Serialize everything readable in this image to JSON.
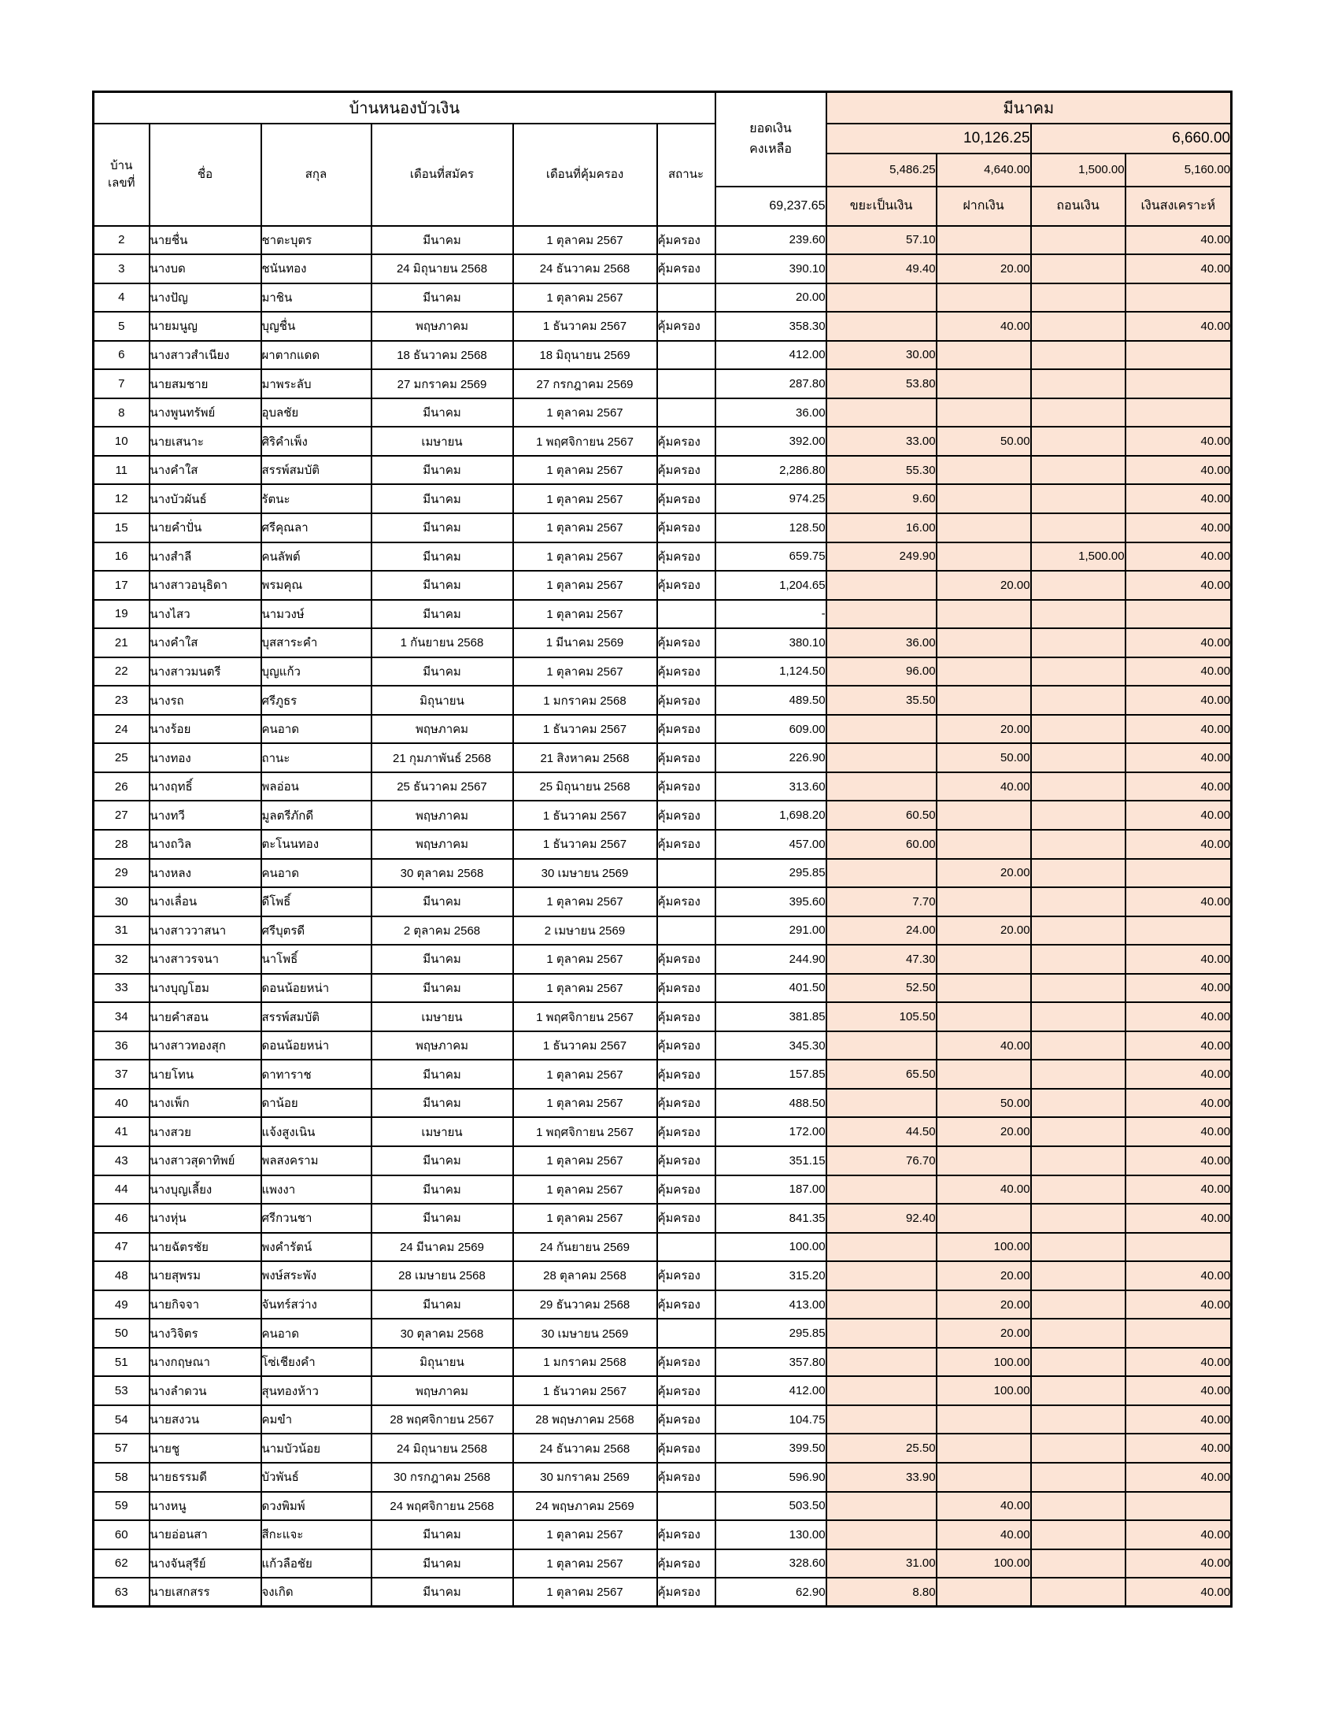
{
  "table": {
    "title": "บ้านหนองบัวเงิน",
    "balance_header_line1": "ยอดเงิน",
    "balance_header_line2": "คงเหลือ",
    "month_header": "มีนาคม",
    "month_total_first_half": "10,126.25",
    "month_total_second_half": "6,660.00",
    "subtotals": {
      "waste": "5,486.25",
      "deposit": "4,640.00",
      "withdraw": "1,500.00",
      "welfare": "5,160.00"
    },
    "balance_total": "69,237.65",
    "col_headers": {
      "house_no_line1": "บ้าน",
      "house_no_line2": "เลขที่",
      "first_name": "ชื่อ",
      "surname": "สกุล",
      "apply_month": "เดือนที่สมัคร",
      "cover_month": "เดือนที่คุ้มครอง",
      "status": "สถานะ",
      "waste": "ขยะเป็นเงิน",
      "deposit": "ฝากเงิน",
      "withdraw": "ถอนเงิน",
      "welfare": "เงินสงเคราะห์"
    },
    "col_keys": [
      "house-no",
      "first-name",
      "surname",
      "apply-month",
      "cover-month",
      "status",
      "balance",
      "waste-money",
      "deposit-money",
      "withdraw-money",
      "welfare-money"
    ],
    "accent_color": "#FCE4D6",
    "rows": [
      [
        "2",
        "นายชื่น",
        "ชาตะบุตร",
        "มีนาคม",
        "1 ตุลาคม 2567",
        "คุ้มครอง",
        "239.60",
        "57.10",
        "",
        "",
        "40.00"
      ],
      [
        "3",
        "นางบด",
        "ชนันทอง",
        "24 มิถุนายน 2568",
        "24 ธันวาคม 2568",
        "คุ้มครอง",
        "390.10",
        "49.40",
        "20.00",
        "",
        "40.00"
      ],
      [
        "4",
        "นางปัญ",
        "มาชิน",
        "มีนาคม",
        "1 ตุลาคม 2567",
        "",
        "20.00",
        "",
        "",
        "",
        ""
      ],
      [
        "5",
        "นายมนูญ",
        "บุญชื่น",
        "พฤษภาคม",
        "1 ธันวาคม 2567",
        "คุ้มครอง",
        "358.30",
        "",
        "40.00",
        "",
        "40.00"
      ],
      [
        "6",
        "นางสาวสำเนียง",
        "ผาตากแดด",
        "18 ธันวาคม 2568",
        "18 มิถุนายน 2569",
        "",
        "412.00",
        "30.00",
        "",
        "",
        ""
      ],
      [
        "7",
        "นายสมชาย",
        "มาพระลับ",
        "27 มกราคม 2569",
        "27 กรกฎาคม 2569",
        "",
        "287.80",
        "53.80",
        "",
        "",
        ""
      ],
      [
        "8",
        "นางพูนทรัพย์",
        "อุบลชัย",
        "มีนาคม",
        "1 ตุลาคม 2567",
        "",
        "36.00",
        "",
        "",
        "",
        ""
      ],
      [
        "10",
        "นายเสนาะ",
        "ศิริคำเพ็ง",
        "เมษายน",
        "1 พฤศจิกายน 2567",
        "คุ้มครอง",
        "392.00",
        "33.00",
        "50.00",
        "",
        "40.00"
      ],
      [
        "11",
        "นางคำใส",
        "สรรพ์สมบัติ",
        "มีนาคม",
        "1 ตุลาคม 2567",
        "คุ้มครอง",
        "2,286.80",
        "55.30",
        "",
        "",
        "40.00"
      ],
      [
        "12",
        "นางบัวผันธ์",
        "รัตนะ",
        "มีนาคม",
        "1 ตุลาคม 2567",
        "คุ้มครอง",
        "974.25",
        "9.60",
        "",
        "",
        "40.00"
      ],
      [
        "15",
        "นายคำปั่น",
        "ศรีคุณลา",
        "มีนาคม",
        "1 ตุลาคม 2567",
        "คุ้มครอง",
        "128.50",
        "16.00",
        "",
        "",
        "40.00"
      ],
      [
        "16",
        "นางสำลี",
        "คนลัพต์",
        "มีนาคม",
        "1 ตุลาคม 2567",
        "คุ้มครอง",
        "659.75",
        "249.90",
        "",
        "1,500.00",
        "40.00"
      ],
      [
        "17",
        "นางสาวอนุธิดา",
        "พรมคุณ",
        "มีนาคม",
        "1 ตุลาคม 2567",
        "คุ้มครอง",
        "1,204.65",
        "",
        "20.00",
        "",
        "40.00"
      ],
      [
        "19",
        "นางไสว",
        "นามวงษ์",
        "มีนาคม",
        "1 ตุลาคม 2567",
        "",
        "-",
        "",
        "",
        "",
        ""
      ],
      [
        "21",
        "นางคำใส",
        "บุสสาระคำ",
        "1 กันยายน 2568",
        "1 มีนาคม 2569",
        "คุ้มครอง",
        "380.10",
        "36.00",
        "",
        "",
        "40.00"
      ],
      [
        "22",
        "นางสาวมนตรี",
        "บุญแก้ว",
        "มีนาคม",
        "1 ตุลาคม 2567",
        "คุ้มครอง",
        "1,124.50",
        "96.00",
        "",
        "",
        "40.00"
      ],
      [
        "23",
        "นางรถ",
        "ศรีภูธร",
        "มิถุนายน",
        "1 มกราคม 2568",
        "คุ้มครอง",
        "489.50",
        "35.50",
        "",
        "",
        "40.00"
      ],
      [
        "24",
        "นางร้อย",
        "คนอาด",
        "พฤษภาคม",
        "1 ธันวาคม 2567",
        "คุ้มครอง",
        "609.00",
        "",
        "20.00",
        "",
        "40.00"
      ],
      [
        "25",
        "นางทอง",
        "ถานะ",
        "21 กุมภาพันธ์ 2568",
        "21 สิงหาคม 2568",
        "คุ้มครอง",
        "226.90",
        "",
        "50.00",
        "",
        "40.00"
      ],
      [
        "26",
        "นางฤทธิ์",
        "พลอ่อน",
        "25 ธันวาคม 2567",
        "25 มิถุนายน 2568",
        "คุ้มครอง",
        "313.60",
        "",
        "40.00",
        "",
        "40.00"
      ],
      [
        "27",
        "นางทวี",
        "มูลตรีภักดี",
        "พฤษภาคม",
        "1 ธันวาคม 2567",
        "คุ้มครอง",
        "1,698.20",
        "60.50",
        "",
        "",
        "40.00"
      ],
      [
        "28",
        "นางถวิล",
        "ตะโนนทอง",
        "พฤษภาคม",
        "1 ธันวาคม 2567",
        "คุ้มครอง",
        "457.00",
        "60.00",
        "",
        "",
        "40.00"
      ],
      [
        "29",
        "นางหลง",
        "คนอาด",
        "30 ตุลาคม 2568",
        "30 เมษายน 2569",
        "",
        "295.85",
        "",
        "20.00",
        "",
        ""
      ],
      [
        "30",
        "นางเลื่อน",
        "ดีโพธิ์",
        "มีนาคม",
        "1 ตุลาคม 2567",
        "คุ้มครอง",
        "395.60",
        "7.70",
        "",
        "",
        "40.00"
      ],
      [
        "31",
        "นางสาววาสนา",
        "ศรีบุตรดี",
        "2 ตุลาคม 2568",
        "2 เมษายน 2569",
        "",
        "291.00",
        "24.00",
        "20.00",
        "",
        ""
      ],
      [
        "32",
        "นางสาวรจนา",
        "นาโพธิ์",
        "มีนาคม",
        "1 ตุลาคม 2567",
        "คุ้มครอง",
        "244.90",
        "47.30",
        "",
        "",
        "40.00"
      ],
      [
        "33",
        "นางบุญโฮม",
        "ดอนน้อยหน่า",
        "มีนาคม",
        "1 ตุลาคม 2567",
        "คุ้มครอง",
        "401.50",
        "52.50",
        "",
        "",
        "40.00"
      ],
      [
        "34",
        "นายคำสอน",
        "สรรพ์สมบัติ",
        "เมษายน",
        "1 พฤศจิกายน 2567",
        "คุ้มครอง",
        "381.85",
        "105.50",
        "",
        "",
        "40.00"
      ],
      [
        "36",
        "นางสาวทองสุก",
        "ดอนน้อยหน่า",
        "พฤษภาคม",
        "1 ธันวาคม 2567",
        "คุ้มครอง",
        "345.30",
        "",
        "40.00",
        "",
        "40.00"
      ],
      [
        "37",
        "นายโทน",
        "ดาทาราช",
        "มีนาคม",
        "1 ตุลาคม 2567",
        "คุ้มครอง",
        "157.85",
        "65.50",
        "",
        "",
        "40.00"
      ],
      [
        "40",
        "นางเพ็ก",
        "ดาน้อย",
        "มีนาคม",
        "1 ตุลาคม 2567",
        "คุ้มครอง",
        "488.50",
        "",
        "50.00",
        "",
        "40.00"
      ],
      [
        "41",
        "นางสวย",
        "แจ้งสูงเนิน",
        "เมษายน",
        "1 พฤศจิกายน 2567",
        "คุ้มครอง",
        "172.00",
        "44.50",
        "20.00",
        "",
        "40.00"
      ],
      [
        "43",
        "นางสาวสุดาทิพย์",
        "พลสงคราม",
        "มีนาคม",
        "1 ตุลาคม 2567",
        "คุ้มครอง",
        "351.15",
        "76.70",
        "",
        "",
        "40.00"
      ],
      [
        "44",
        "นางบุญเลี้ยง",
        "แพงงา",
        "มีนาคม",
        "1 ตุลาคม 2567",
        "คุ้มครอง",
        "187.00",
        "",
        "40.00",
        "",
        "40.00"
      ],
      [
        "46",
        "นางหุ่น",
        "ศรีกวนชา",
        "มีนาคม",
        "1 ตุลาคม 2567",
        "คุ้มครอง",
        "841.35",
        "92.40",
        "",
        "",
        "40.00"
      ],
      [
        "47",
        "นายฉัตรชัย",
        "พงคำรัตน์",
        "24 มีนาคม 2569",
        "24 กันยายน 2569",
        "",
        "100.00",
        "",
        "100.00",
        "",
        ""
      ],
      [
        "48",
        "นายสุพรม",
        "พงษ์สระพัง",
        "28 เมษายน 2568",
        "28 ตุลาคม 2568",
        "คุ้มครอง",
        "315.20",
        "",
        "20.00",
        "",
        "40.00"
      ],
      [
        "49",
        "นายกิจจา",
        "จันทร์สว่าง",
        "มีนาคม",
        "29 ธันวาคม 2568",
        "คุ้มครอง",
        "413.00",
        "",
        "20.00",
        "",
        "40.00"
      ],
      [
        "50",
        "นางวิจิตร",
        "คนอาด",
        "30 ตุลาคม 2568",
        "30 เมษายน 2569",
        "",
        "295.85",
        "",
        "20.00",
        "",
        ""
      ],
      [
        "51",
        "นางกฤษณา",
        "โซ่เชียงคำ",
        "มิถุนายน",
        "1 มกราคม 2568",
        "คุ้มครอง",
        "357.80",
        "",
        "100.00",
        "",
        "40.00"
      ],
      [
        "53",
        "นางลำดวน",
        "สุนทองห้าว",
        "พฤษภาคม",
        "1 ธันวาคม 2567",
        "คุ้มครอง",
        "412.00",
        "",
        "100.00",
        "",
        "40.00"
      ],
      [
        "54",
        "นายสงวน",
        "คมขำ",
        "28 พฤศจิกายน 2567",
        "28 พฤษภาคม 2568",
        "คุ้มครอง",
        "104.75",
        "",
        "",
        "",
        "40.00"
      ],
      [
        "57",
        "นายชู",
        "นามบัวน้อย",
        "24 มิถุนายน 2568",
        "24 ธันวาคม 2568",
        "คุ้มครอง",
        "399.50",
        "25.50",
        "",
        "",
        "40.00"
      ],
      [
        "58",
        "นายธรรมดี",
        "บัวพันธ์",
        "30 กรกฎาคม 2568",
        "30 มกราคม 2569",
        "คุ้มครอง",
        "596.90",
        "33.90",
        "",
        "",
        "40.00"
      ],
      [
        "59",
        "นางหนู",
        "ดวงพิมพ์",
        "24 พฤศจิกายน 2568",
        "24 พฤษภาคม 2569",
        "",
        "503.50",
        "",
        "40.00",
        "",
        ""
      ],
      [
        "60",
        "นายอ่อนสา",
        "สีกะแจะ",
        "มีนาคม",
        "1 ตุลาคม 2567",
        "คุ้มครอง",
        "130.00",
        "",
        "40.00",
        "",
        "40.00"
      ],
      [
        "62",
        "นางจันสุรีย์",
        "แก้วลือชัย",
        "มีนาคม",
        "1 ตุลาคม 2567",
        "คุ้มครอง",
        "328.60",
        "31.00",
        "100.00",
        "",
        "40.00"
      ],
      [
        "63",
        "นายเสกสรร",
        "จงเกิด",
        "มีนาคม",
        "1 ตุลาคม 2567",
        "คุ้มครอง",
        "62.90",
        "8.80",
        "",
        "",
        "40.00"
      ]
    ]
  }
}
